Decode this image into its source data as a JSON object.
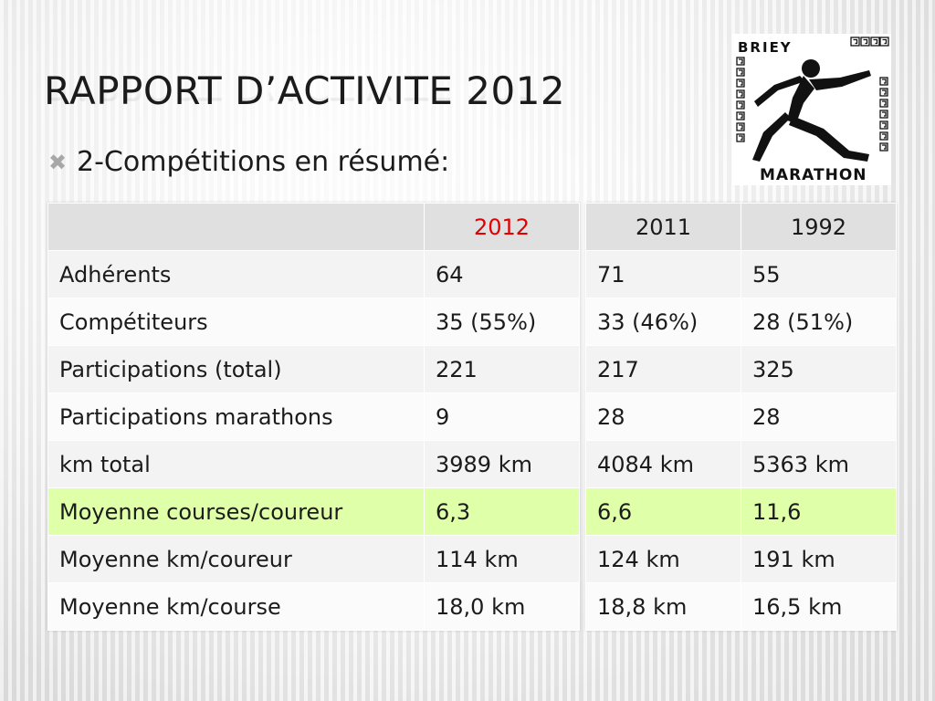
{
  "slide": {
    "title": "Rapport d’activite 2012",
    "bullet": "2-Compétitions en résumé:",
    "bullet_icon": "x-bullet-icon"
  },
  "logo": {
    "text_top": "BRIEY",
    "text_bottom": "MARATHON",
    "icon": "runner-icon"
  },
  "colors": {
    "highlight_row": "#dfffa8",
    "year_2012": "#e30000"
  },
  "table": {
    "columns": [
      "",
      "2012",
      "2011",
      "1992"
    ],
    "rows": [
      {
        "label": "Adhérents",
        "y2012": "64",
        "y2011": "71",
        "y1992": "55"
      },
      {
        "label": "Compétiteurs",
        "y2012": "35 (55%)",
        "y2011": "33 (46%)",
        "y1992": "28 (51%)"
      },
      {
        "label": "Participations  (total)",
        "y2012": "221",
        "y2011": "217",
        "y1992": "325"
      },
      {
        "label": "Participations marathons",
        "y2012": "9",
        "y2011": "28",
        "y1992": "28"
      },
      {
        "label": "km total",
        "y2012": "3989 km",
        "y2011": "4084 km",
        "y1992": "5363 km"
      },
      {
        "label": "Moyenne courses/coureur",
        "y2012": "6,3",
        "y2011": "6,6",
        "y1992": "11,6"
      },
      {
        "label": "Moyenne km/coureur",
        "y2012": "114 km",
        "y2011": "124 km",
        "y1992": "191 km"
      },
      {
        "label": "Moyenne km/course",
        "y2012": "18,0 km",
        "y2011": "18,8 km",
        "y1992": "16,5 km"
      }
    ]
  }
}
